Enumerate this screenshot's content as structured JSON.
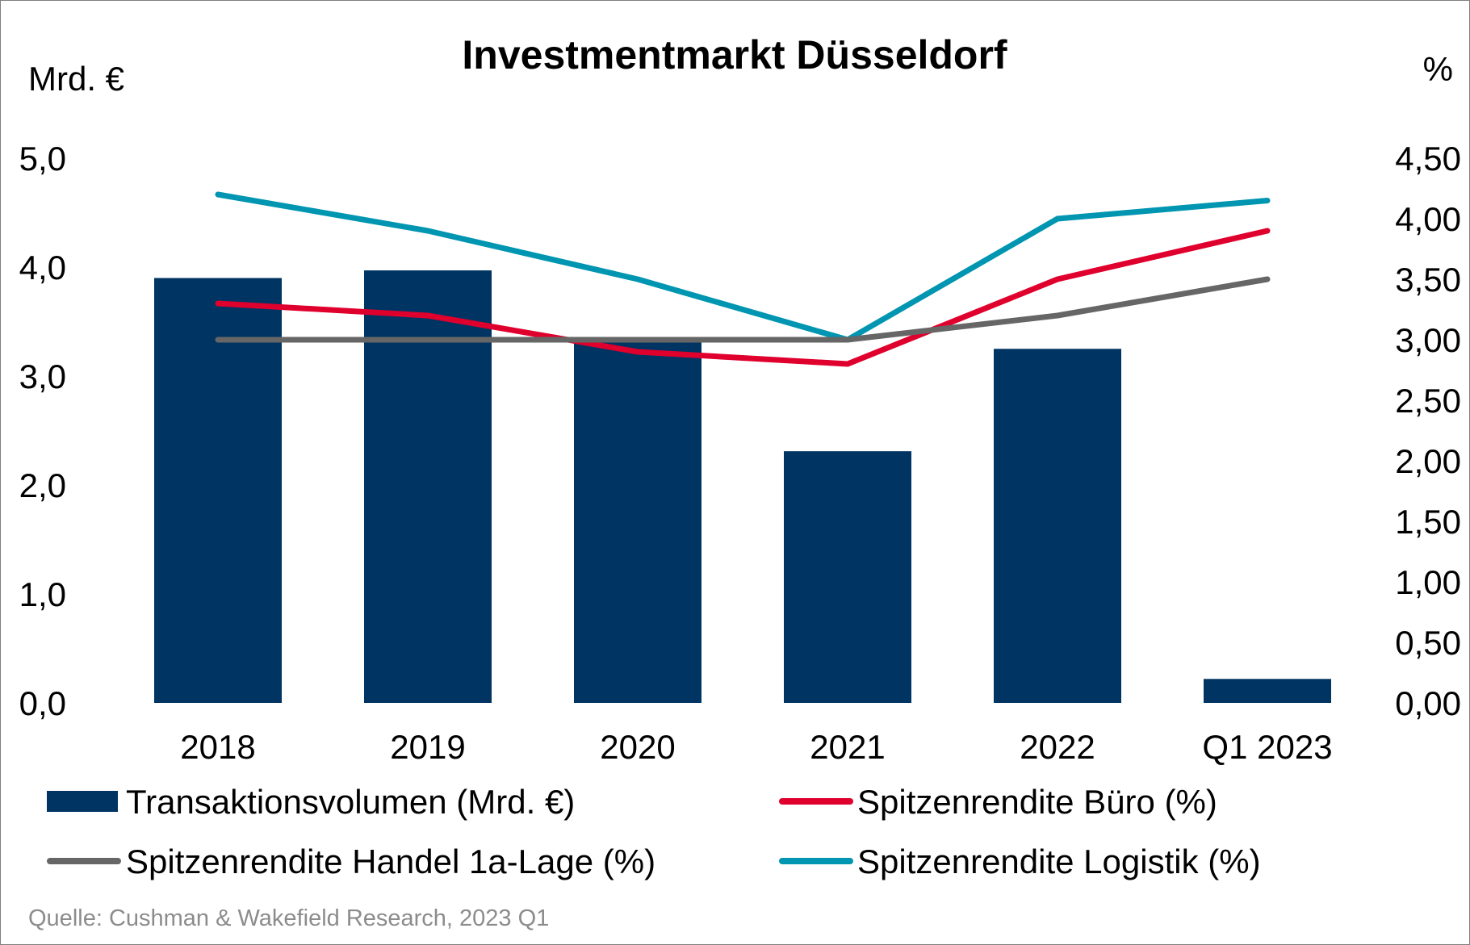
{
  "chart_data": {
    "type": "bar+line",
    "title": "Investmentmarkt Düsseldorf",
    "left_axis_unit": "Mrd. €",
    "right_axis_unit": "%",
    "categories": [
      "2018",
      "2019",
      "2020",
      "2021",
      "2022",
      "Q1 2023"
    ],
    "y_left": {
      "range": [
        0,
        5
      ],
      "ticks": [
        0,
        1,
        2,
        3,
        4,
        5
      ],
      "tick_labels": [
        "0,0",
        "1,0",
        "2,0",
        "3,0",
        "4,0",
        "5,0"
      ]
    },
    "y_right": {
      "range": [
        0,
        4.5
      ],
      "ticks": [
        0,
        0.5,
        1,
        1.5,
        2,
        2.5,
        3,
        3.5,
        4,
        4.5
      ],
      "tick_labels": [
        "0,00",
        "0,50",
        "1,00",
        "1,50",
        "2,00",
        "2,50",
        "3,00",
        "3,50",
        "4,00",
        "4,50"
      ]
    },
    "bar_series": {
      "name": "Transaktionsvolumen (Mrd. €)",
      "axis": "left",
      "color": "#003462",
      "values": [
        3.9,
        3.97,
        3.33,
        2.31,
        3.25,
        0.22
      ]
    },
    "line_series": [
      {
        "name": "Spitzenrendite Büro (%)",
        "axis": "right",
        "color": "#e0002d",
        "values": [
          3.3,
          3.2,
          2.9,
          2.8,
          3.5,
          3.9
        ]
      },
      {
        "name": "Spitzenrendite Handel 1a-Lage (%)",
        "axis": "right",
        "color": "#666666",
        "values": [
          3.0,
          3.0,
          3.0,
          3.0,
          3.2,
          3.5
        ]
      },
      {
        "name": "Spitzenrendite Logistik (%)",
        "axis": "right",
        "color": "#0095b0",
        "values": [
          4.2,
          3.9,
          3.5,
          3.0,
          4.0,
          4.15
        ]
      }
    ],
    "grid": false,
    "legend_position": "bottom",
    "source": "Quelle: Cushman & Wakefield Research, 2023 Q1"
  }
}
